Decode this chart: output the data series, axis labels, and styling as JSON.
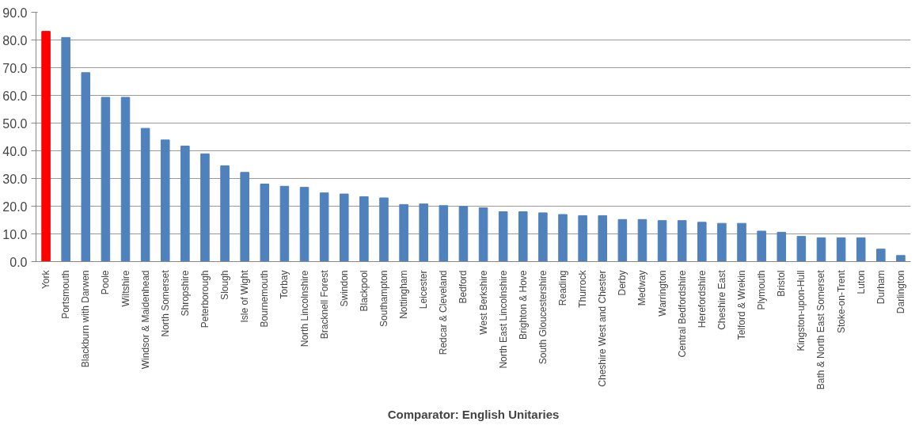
{
  "chart_data": {
    "type": "bar",
    "xlabel": "Comparator: English Unitaries",
    "categories": [
      "York",
      "Portsmouth",
      "Blackburn with Darwen",
      "Poole",
      "Wiltshire",
      "Windsor & Maidenhead",
      "North Somerset",
      "Shropshire",
      "Peterborough",
      "Slough",
      "Isle of Wight",
      "Bournemouth",
      "Torbay",
      "North Lincolnshire",
      "Bracknell Forest",
      "Swindon",
      "Blackpool",
      "Southampton",
      "Nottingham",
      "Leicester",
      "Redcar & Cleveland",
      "Bedford",
      "West Berkshire",
      "North East Lincolnshire",
      "Brighton & Hove",
      "South Gloucestershire",
      "Reading",
      "Thurrock",
      "Cheshire West and Chester",
      "Derby",
      "Medway",
      "Warrington",
      "Central Bedfordshire",
      "Herefordshire",
      "Cheshire East",
      "Telford & Wrekin",
      "Plymouth",
      "Bristol",
      "Kingston-upon-Hull",
      "Bath & North East Somerset",
      "Stoke-on-Trent",
      "Luton",
      "Durham",
      "Darlington"
    ],
    "values": [
      83.1,
      80.9,
      68.2,
      59.3,
      59.3,
      48.1,
      43.9,
      41.7,
      38.9,
      34.6,
      32.2,
      28.0,
      27.2,
      26.8,
      24.8,
      24.4,
      23.4,
      23.0,
      20.6,
      20.8,
      20.2,
      19.9,
      19.4,
      18.0,
      18.0,
      17.6,
      17.0,
      16.6,
      16.6,
      15.2,
      15.2,
      14.8,
      14.8,
      14.2,
      13.8,
      13.8,
      11.0,
      10.6,
      9.1,
      8.6,
      8.6,
      8.6,
      4.5,
      2.2
    ],
    "colors": [
      "#ff0000",
      "#4f81bd",
      "#4f81bd",
      "#4f81bd",
      "#4f81bd",
      "#4f81bd",
      "#4f81bd",
      "#4f81bd",
      "#4f81bd",
      "#4f81bd",
      "#4f81bd",
      "#4f81bd",
      "#4f81bd",
      "#4f81bd",
      "#4f81bd",
      "#4f81bd",
      "#4f81bd",
      "#4f81bd",
      "#4f81bd",
      "#4f81bd",
      "#4f81bd",
      "#4f81bd",
      "#4f81bd",
      "#4f81bd",
      "#4f81bd",
      "#4f81bd",
      "#4f81bd",
      "#4f81bd",
      "#4f81bd",
      "#4f81bd",
      "#4f81bd",
      "#4f81bd",
      "#4f81bd",
      "#4f81bd",
      "#4f81bd",
      "#4f81bd",
      "#4f81bd",
      "#4f81bd",
      "#4f81bd",
      "#4f81bd",
      "#4f81bd",
      "#4f81bd",
      "#4f81bd",
      "#4f81bd"
    ],
    "ylim": [
      0,
      90
    ],
    "yticks": [
      {
        "value": 0,
        "label": "0.0"
      },
      {
        "value": 10,
        "label": "10.0"
      },
      {
        "value": 20,
        "label": "20.0"
      },
      {
        "value": 30,
        "label": "30.0"
      },
      {
        "value": 40,
        "label": "40.0"
      },
      {
        "value": 50,
        "label": "50.0"
      },
      {
        "value": 60,
        "label": "60.0"
      },
      {
        "value": 70,
        "label": "70.0"
      },
      {
        "value": 80,
        "label": "80.0"
      },
      {
        "value": 90,
        "label": "90.0"
      }
    ],
    "grid": "y"
  }
}
